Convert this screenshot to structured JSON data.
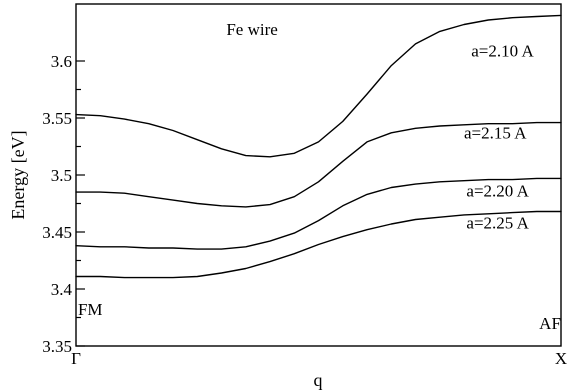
{
  "chart_data": {
    "type": "line",
    "title": "",
    "xlabel": "q",
    "ylabel": "Energy [eV]",
    "xlim": [
      0,
      1
    ],
    "ylim": [
      3.35,
      3.65
    ],
    "x_ticks": [
      {
        "value": 0,
        "label": "Γ"
      },
      {
        "value": 1,
        "label": "X"
      }
    ],
    "y_ticks": [
      3.35,
      3.4,
      3.45,
      3.5,
      3.55,
      3.6
    ],
    "y_tick_labels": [
      "3.35",
      "3.4",
      "3.45",
      "3.5",
      "3.55",
      "3.6"
    ],
    "annotations": [
      {
        "text": "Fe wire",
        "x": 0.31,
        "y": 3.623
      },
      {
        "text": "FM",
        "x": 0.004,
        "y": 3.377
      },
      {
        "text": "AF",
        "x": 0.955,
        "y": 3.365
      }
    ],
    "series": [
      {
        "label": "a=2.10 A",
        "label_pos": {
          "x": 0.815,
          "y": 3.604
        },
        "x": [
          0,
          0.05,
          0.1,
          0.15,
          0.2,
          0.25,
          0.3,
          0.35,
          0.4,
          0.45,
          0.5,
          0.55,
          0.6,
          0.65,
          0.7,
          0.75,
          0.8,
          0.85,
          0.9,
          0.95,
          1.0
        ],
        "y": [
          3.553,
          3.552,
          3.549,
          3.545,
          3.539,
          3.531,
          3.523,
          3.517,
          3.516,
          3.519,
          3.529,
          3.547,
          3.571,
          3.596,
          3.615,
          3.626,
          3.632,
          3.636,
          3.638,
          3.639,
          3.64
        ]
      },
      {
        "label": "a=2.15 A",
        "label_pos": {
          "x": 0.8,
          "y": 3.532
        },
        "x": [
          0,
          0.05,
          0.1,
          0.15,
          0.2,
          0.25,
          0.3,
          0.35,
          0.4,
          0.45,
          0.5,
          0.55,
          0.6,
          0.65,
          0.7,
          0.75,
          0.8,
          0.85,
          0.9,
          0.95,
          1.0
        ],
        "y": [
          3.485,
          3.485,
          3.484,
          3.481,
          3.478,
          3.475,
          3.473,
          3.472,
          3.474,
          3.481,
          3.494,
          3.512,
          3.529,
          3.537,
          3.541,
          3.543,
          3.544,
          3.545,
          3.545,
          3.546,
          3.546
        ]
      },
      {
        "label": "a=2.20 A",
        "label_pos": {
          "x": 0.805,
          "y": 3.481
        },
        "x": [
          0,
          0.05,
          0.1,
          0.15,
          0.2,
          0.25,
          0.3,
          0.35,
          0.4,
          0.45,
          0.5,
          0.55,
          0.6,
          0.65,
          0.7,
          0.75,
          0.8,
          0.85,
          0.9,
          0.95,
          1.0
        ],
        "y": [
          3.438,
          3.437,
          3.437,
          3.436,
          3.436,
          3.435,
          3.435,
          3.437,
          3.442,
          3.449,
          3.46,
          3.473,
          3.483,
          3.489,
          3.492,
          3.494,
          3.495,
          3.496,
          3.496,
          3.497,
          3.497
        ]
      },
      {
        "label": "a=2.25 A",
        "label_pos": {
          "x": 0.805,
          "y": 3.453
        },
        "x": [
          0,
          0.05,
          0.1,
          0.15,
          0.2,
          0.25,
          0.3,
          0.35,
          0.4,
          0.45,
          0.5,
          0.55,
          0.6,
          0.65,
          0.7,
          0.75,
          0.8,
          0.85,
          0.9,
          0.95,
          1.0
        ],
        "y": [
          3.411,
          3.411,
          3.41,
          3.41,
          3.41,
          3.411,
          3.414,
          3.418,
          3.424,
          3.431,
          3.439,
          3.446,
          3.452,
          3.457,
          3.461,
          3.463,
          3.465,
          3.466,
          3.467,
          3.468,
          3.468
        ]
      }
    ]
  }
}
